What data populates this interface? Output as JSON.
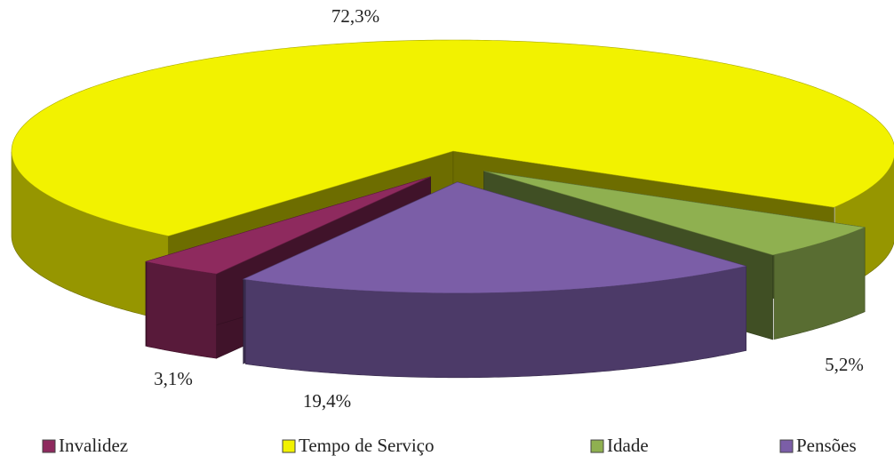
{
  "chart_data": {
    "type": "pie3d",
    "categories": [
      "Invalidez",
      "Tempo de Serviço",
      "Idade",
      "Pensões"
    ],
    "series": [
      {
        "colors": [
          "#8e2a5e",
          "#f2f200",
          "#8fb050",
          "#7b5ea7"
        ],
        "values": [
          3.1,
          72.3,
          5.2,
          19.4
        ],
        "value_labels": [
          "3,1%",
          "72,3%",
          "5,2%",
          "19,4%"
        ]
      }
    ],
    "legend": "bottom"
  }
}
